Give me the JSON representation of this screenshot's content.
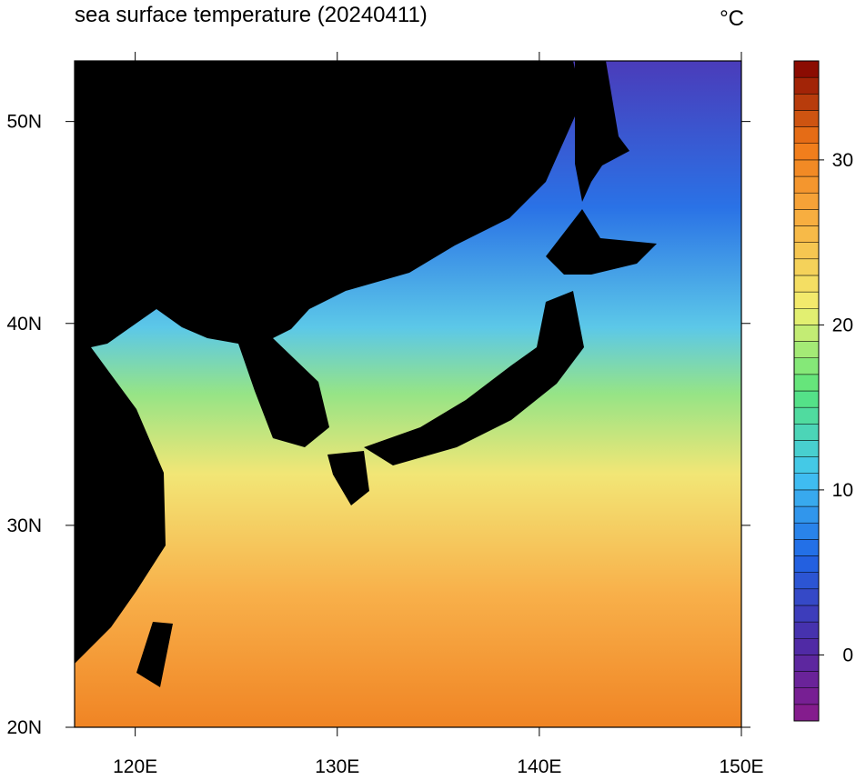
{
  "map": {
    "title": "sea surface temperature (20240411)",
    "unit": "°C",
    "xlim": [
      117,
      150
    ],
    "ylim": [
      20,
      53
    ],
    "xticks": [
      {
        "value": 120,
        "label": "120E"
      },
      {
        "value": 130,
        "label": "130E"
      },
      {
        "value": 140,
        "label": "140E"
      },
      {
        "value": 150,
        "label": "150E"
      }
    ],
    "yticks": [
      {
        "value": 20,
        "label": "20N"
      },
      {
        "value": 30,
        "label": "30N"
      },
      {
        "value": 40,
        "label": "40N"
      },
      {
        "value": 50,
        "label": "50N"
      }
    ],
    "colorbar": {
      "lim": [
        -4,
        36
      ],
      "step": 1,
      "ticks": [
        0,
        10,
        20,
        30
      ],
      "colors": [
        "#8a1a8a",
        "#4a2ca8",
        "#1f66e6",
        "#42c6f2",
        "#56e47c",
        "#f2f070",
        "#f8b444",
        "#f07818",
        "#800000"
      ]
    }
  }
}
